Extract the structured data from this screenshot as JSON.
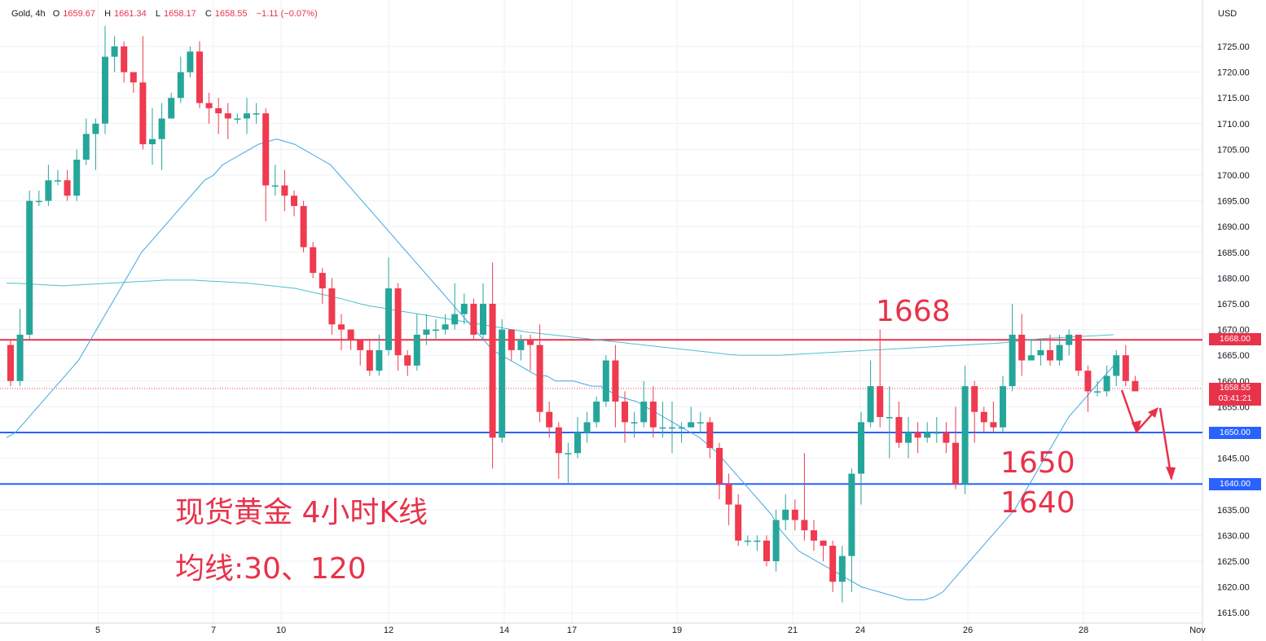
{
  "header": {
    "symbol": "Gold",
    "interval": "4h",
    "open_label": "O",
    "open": "1659.67",
    "high_label": "H",
    "high": "1661.34",
    "low_label": "L",
    "low": "1658.17",
    "close_label": "C",
    "close": "1658.55",
    "change": "−1.11 (−0.07%)",
    "currency": "USD"
  },
  "annotations": {
    "title": "现货黄金 4小时K线",
    "ma_note": "均线:30、120",
    "level_high": "1668",
    "level_mid": "1650",
    "level_low": "1640"
  },
  "price_badges": {
    "resistance": "1668.00",
    "last_price": "1658.55",
    "countdown": "03:41:21",
    "support_1": "1650.00",
    "support_2": "1640.00"
  },
  "colors": {
    "up": "#26a69a",
    "down": "#ef3a4f",
    "resistance_line": "#e8324a",
    "support_line": "#2962ff",
    "ma30": "#3fa7e0",
    "ma120": "#4cc0cf",
    "annotation": "#e8324a",
    "grid": "#eef0f3"
  },
  "chart_data": {
    "type": "candlestick",
    "y_axis": {
      "min": 1615,
      "max": 1725,
      "step": 5,
      "position": "right"
    },
    "x_ticks": [
      "5",
      "7",
      "10",
      "12",
      "14",
      "17",
      "19",
      "21",
      "24",
      "26",
      "28",
      "Nov"
    ],
    "horizontal_levels": [
      1668,
      1650,
      1640
    ],
    "last_price": 1658.55,
    "candles": [
      [
        1667,
        1660,
        1668,
        1659
      ],
      [
        1660,
        1669,
        1674,
        1659
      ],
      [
        1669,
        1695,
        1697,
        1668
      ],
      [
        1695,
        1695,
        1697,
        1694
      ],
      [
        1695,
        1699,
        1702,
        1694
      ],
      [
        1699,
        1699,
        1701,
        1698
      ],
      [
        1699,
        1696,
        1701,
        1695
      ],
      [
        1696,
        1703,
        1705,
        1695
      ],
      [
        1703,
        1708,
        1711,
        1702
      ],
      [
        1708,
        1710,
        1711,
        1701
      ],
      [
        1710,
        1723,
        1729,
        1708
      ],
      [
        1723,
        1725,
        1727,
        1720
      ],
      [
        1725,
        1720,
        1726,
        1718
      ],
      [
        1720,
        1718,
        1720,
        1716
      ],
      [
        1718,
        1706,
        1727,
        1705
      ],
      [
        1706,
        1707,
        1713,
        1702
      ],
      [
        1707,
        1711,
        1714,
        1701
      ],
      [
        1711,
        1715,
        1716,
        1712
      ],
      [
        1715,
        1720,
        1723,
        1714
      ],
      [
        1720,
        1724,
        1725,
        1719
      ],
      [
        1724,
        1714,
        1726,
        1713
      ],
      [
        1714,
        1713,
        1716,
        1710
      ],
      [
        1713,
        1712,
        1715,
        1708
      ],
      [
        1712,
        1711,
        1714,
        1707
      ],
      [
        1711,
        1711,
        1712,
        1710
      ],
      [
        1711,
        1712,
        1715,
        1708
      ],
      [
        1712,
        1712,
        1714,
        1710
      ],
      [
        1712,
        1698,
        1713,
        1691
      ],
      [
        1698,
        1698,
        1702,
        1696
      ],
      [
        1698,
        1696,
        1701,
        1693
      ],
      [
        1696,
        1694,
        1697,
        1692
      ],
      [
        1694,
        1686,
        1695,
        1685
      ],
      [
        1686,
        1681,
        1687,
        1680
      ],
      [
        1681,
        1678,
        1682,
        1675
      ],
      [
        1678,
        1671,
        1680,
        1669
      ],
      [
        1671,
        1670,
        1673,
        1666
      ],
      [
        1670,
        1668,
        1669,
        1666
      ],
      [
        1668,
        1666,
        1668,
        1663
      ],
      [
        1666,
        1662,
        1668,
        1661
      ],
      [
        1662,
        1666,
        1669,
        1661
      ],
      [
        1666,
        1678,
        1684,
        1665
      ],
      [
        1678,
        1665,
        1679,
        1662
      ],
      [
        1665,
        1663,
        1666,
        1661
      ],
      [
        1663,
        1669,
        1673,
        1662
      ],
      [
        1669,
        1670,
        1673,
        1667
      ],
      [
        1670,
        1670,
        1672,
        1668
      ],
      [
        1670,
        1671,
        1673,
        1669
      ],
      [
        1671,
        1673,
        1679,
        1670
      ],
      [
        1673,
        1675,
        1677,
        1671
      ],
      [
        1675,
        1669,
        1676,
        1668
      ],
      [
        1669,
        1675,
        1679,
        1668
      ],
      [
        1675,
        1649,
        1683,
        1643
      ],
      [
        1649,
        1670,
        1672,
        1648
      ],
      [
        1670,
        1666,
        1670,
        1664
      ],
      [
        1666,
        1668,
        1669,
        1664
      ],
      [
        1668,
        1667,
        1669,
        1662
      ],
      [
        1667,
        1654,
        1671,
        1652
      ],
      [
        1654,
        1651,
        1656,
        1649
      ],
      [
        1651,
        1646,
        1652,
        1641
      ],
      [
        1646,
        1646,
        1648,
        1640
      ],
      [
        1646,
        1650,
        1653,
        1645
      ],
      [
        1650,
        1652,
        1654,
        1648
      ],
      [
        1652,
        1656,
        1657,
        1651
      ],
      [
        1656,
        1664,
        1665,
        1655
      ],
      [
        1664,
        1656,
        1667,
        1651
      ],
      [
        1656,
        1652,
        1658,
        1648
      ],
      [
        1652,
        1652,
        1654,
        1649
      ],
      [
        1652,
        1656,
        1660,
        1651
      ],
      [
        1656,
        1651,
        1659,
        1649
      ],
      [
        1651,
        1651,
        1656,
        1649
      ],
      [
        1651,
        1651,
        1656,
        1646
      ],
      [
        1651,
        1651,
        1652,
        1648
      ],
      [
        1651,
        1652,
        1655,
        1651
      ],
      [
        1652,
        1652,
        1654,
        1650
      ],
      [
        1652,
        1647,
        1653,
        1645
      ],
      [
        1647,
        1640,
        1648,
        1637
      ],
      [
        1640,
        1636,
        1642,
        1632
      ],
      [
        1636,
        1629,
        1638,
        1628
      ],
      [
        1629,
        1629,
        1630,
        1628
      ],
      [
        1629,
        1629,
        1630,
        1627
      ],
      [
        1629,
        1625,
        1630,
        1624
      ],
      [
        1625,
        1633,
        1635,
        1623
      ],
      [
        1633,
        1635,
        1638,
        1631
      ],
      [
        1635,
        1633,
        1637,
        1631
      ],
      [
        1633,
        1631,
        1646,
        1629
      ],
      [
        1631,
        1629,
        1633,
        1627
      ],
      [
        1629,
        1628,
        1629,
        1625
      ],
      [
        1628,
        1621,
        1629,
        1619
      ],
      [
        1621,
        1626,
        1628,
        1617
      ],
      [
        1626,
        1642,
        1643,
        1619
      ],
      [
        1642,
        1652,
        1654,
        1636
      ],
      [
        1652,
        1659,
        1664,
        1651
      ],
      [
        1659,
        1653,
        1670,
        1651
      ],
      [
        1653,
        1653,
        1659,
        1645
      ],
      [
        1653,
        1648,
        1656,
        1647
      ],
      [
        1648,
        1650,
        1653,
        1645
      ],
      [
        1650,
        1649,
        1652,
        1646
      ],
      [
        1649,
        1650,
        1652,
        1648
      ],
      [
        1650,
        1650,
        1653,
        1648
      ],
      [
        1650,
        1648,
        1652,
        1646
      ],
      [
        1648,
        1640,
        1655,
        1639
      ],
      [
        1640,
        1659,
        1663,
        1638
      ],
      [
        1659,
        1654,
        1660,
        1648
      ],
      [
        1654,
        1652,
        1655,
        1650
      ],
      [
        1652,
        1651,
        1656,
        1650
      ],
      [
        1651,
        1659,
        1661,
        1650
      ],
      [
        1659,
        1669,
        1675,
        1658
      ],
      [
        1669,
        1664,
        1673,
        1661
      ],
      [
        1664,
        1665,
        1668,
        1664
      ],
      [
        1665,
        1666,
        1668,
        1663
      ],
      [
        1666,
        1664,
        1669,
        1663
      ],
      [
        1664,
        1667,
        1669,
        1663
      ],
      [
        1667,
        1669,
        1670,
        1665
      ],
      [
        1669,
        1662,
        1669,
        1661
      ],
      [
        1662,
        1658,
        1663,
        1654
      ],
      [
        1658,
        1658,
        1660,
        1657
      ],
      [
        1658,
        1661,
        1663,
        1657
      ],
      [
        1661,
        1665,
        1666,
        1659
      ],
      [
        1665,
        1660,
        1667,
        1659
      ],
      [
        1660,
        1658,
        1661,
        1658
      ]
    ],
    "series": [
      {
        "name": "30",
        "values": [
          1649,
          1650,
          1652,
          1654,
          1656,
          1658,
          1660,
          1662,
          1664,
          1667,
          1670,
          1673,
          1676,
          1679,
          1682,
          1685,
          1687,
          1689,
          1691,
          1693,
          1695,
          1697,
          1699,
          1700,
          1702,
          1703,
          1704,
          1705,
          1706,
          1706.5,
          1707,
          1706.5,
          1706,
          1705,
          1704,
          1703,
          1702,
          1700,
          1698,
          1696,
          1694,
          1692,
          1690,
          1688,
          1686,
          1684,
          1682,
          1680,
          1678,
          1676,
          1674,
          1672,
          1670,
          1668,
          1666,
          1665,
          1664,
          1663,
          1662,
          1661,
          1661,
          1660,
          1660,
          1660,
          1659.5,
          1659,
          1659,
          1658,
          1657,
          1656.5,
          1656,
          1655,
          1654,
          1653,
          1652,
          1651,
          1650,
          1649,
          1647.5,
          1646,
          1644,
          1642,
          1640,
          1638,
          1636,
          1634,
          1631,
          1629,
          1627,
          1626,
          1625,
          1624,
          1623,
          1622,
          1621,
          1620,
          1619.5,
          1619,
          1618.5,
          1618,
          1617.5,
          1617.5,
          1617.5,
          1618,
          1619,
          1621,
          1623,
          1625,
          1627,
          1629,
          1631,
          1633,
          1635,
          1638,
          1641,
          1644,
          1647,
          1650,
          1653,
          1655,
          1657,
          1659,
          1661,
          1663
        ]
      },
      {
        "name": "120",
        "values": [
          1679,
          1679,
          1678.9,
          1678.8,
          1678.7,
          1678.6,
          1678.5,
          1678.6,
          1678.7,
          1678.8,
          1678.9,
          1679,
          1679.1,
          1679.2,
          1679.3,
          1679.4,
          1679.5,
          1679.6,
          1679.6,
          1679.6,
          1679.6,
          1679.5,
          1679.4,
          1679.3,
          1679.2,
          1679.1,
          1679,
          1678.8,
          1678.6,
          1678.4,
          1678.2,
          1678,
          1677.6,
          1677.2,
          1676.8,
          1676.4,
          1676,
          1675.5,
          1675,
          1674.6,
          1674.3,
          1674,
          1673.7,
          1673.4,
          1673.1,
          1672.8,
          1672.5,
          1672.2,
          1671.9,
          1671.6,
          1671.3,
          1671,
          1670.7,
          1670.4,
          1670.1,
          1669.8,
          1669.5,
          1669.3,
          1669.1,
          1668.9,
          1668.7,
          1668.5,
          1668.3,
          1668.1,
          1667.9,
          1667.7,
          1667.5,
          1667.3,
          1667.1,
          1666.9,
          1666.7,
          1666.5,
          1666.3,
          1666.1,
          1665.9,
          1665.7,
          1665.5,
          1665.3,
          1665.1,
          1665,
          1665,
          1665,
          1665,
          1665,
          1665.1,
          1665.2,
          1665.3,
          1665.4,
          1665.5,
          1665.6,
          1665.7,
          1665.8,
          1665.9,
          1666,
          1666.1,
          1666.2,
          1666.3,
          1666.4,
          1666.5,
          1666.6,
          1666.7,
          1666.8,
          1666.9,
          1667,
          1667.1,
          1667.2,
          1667.3,
          1667.4,
          1667.6,
          1667.8,
          1668,
          1668.2,
          1668.3,
          1668.4,
          1668.5,
          1668.6,
          1668.7,
          1668.8,
          1668.9,
          1669
        ]
      }
    ]
  }
}
